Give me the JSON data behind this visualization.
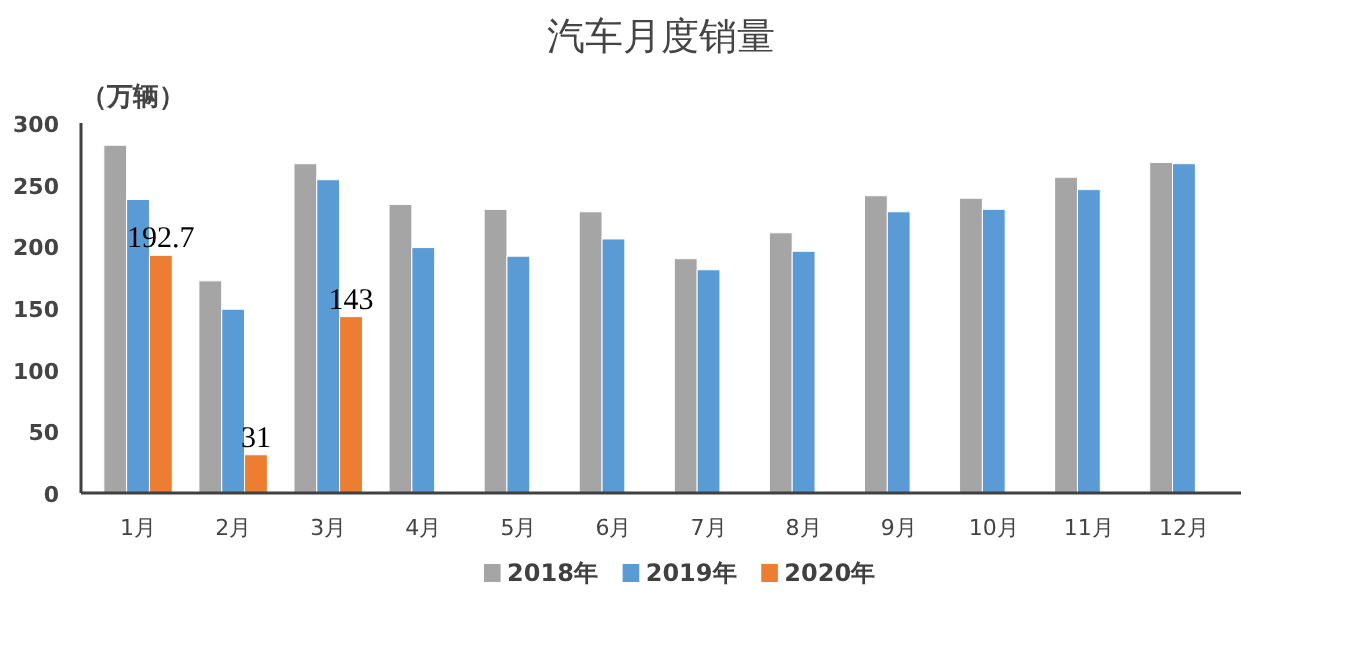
{
  "chart_data": {
    "type": "bar",
    "title": "汽车月度销量",
    "ylabel": "（万辆）",
    "categories": [
      "1月",
      "2月",
      "3月",
      "4月",
      "5月",
      "6月",
      "7月",
      "8月",
      "9月",
      "10月",
      "11月",
      "12月"
    ],
    "series": [
      {
        "name": "2018年",
        "color": "#a5a5a5",
        "values": [
          282,
          172,
          267,
          234,
          230,
          228,
          190,
          211,
          241,
          239,
          256,
          268
        ]
      },
      {
        "name": "2019年",
        "color": "#5b9bd5",
        "values": [
          238,
          149,
          254,
          199,
          192,
          206,
          181,
          196,
          228,
          230,
          246,
          267
        ]
      },
      {
        "name": "2020年",
        "color": "#ed7d31",
        "values": [
          192.7,
          31,
          143,
          null,
          null,
          null,
          null,
          null,
          null,
          null,
          null,
          null
        ],
        "value_labels": [
          "192.7",
          "31",
          "143",
          null,
          null,
          null,
          null,
          null,
          null,
          null,
          null,
          null
        ]
      }
    ],
    "ylim": [
      0,
      300
    ],
    "yticks": [
      0,
      50,
      100,
      150,
      200,
      250,
      300
    ],
    "grid": false,
    "legend": "bottom"
  }
}
